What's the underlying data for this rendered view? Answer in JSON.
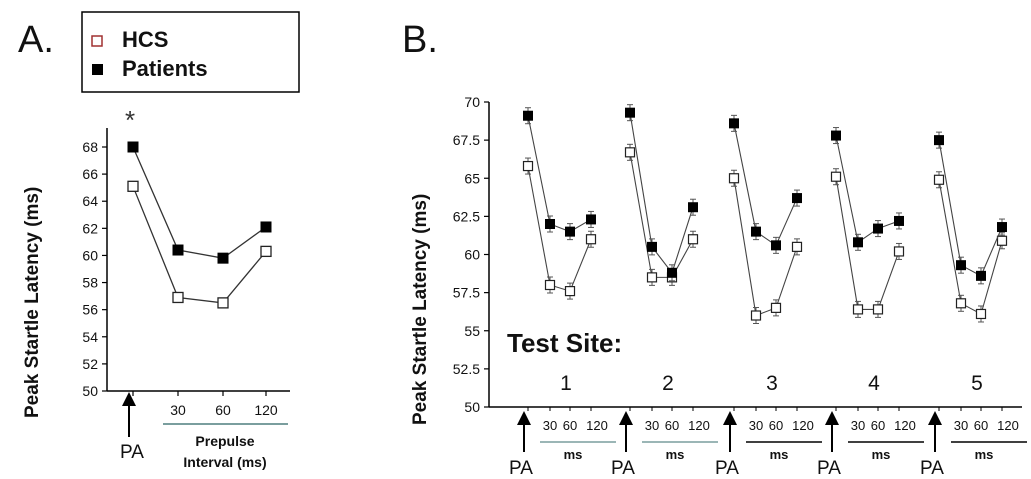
{
  "chart_data": [
    {
      "panel": "A.",
      "type": "line",
      "ylabel": "Peak Startle Latency (ms)",
      "ylim": [
        50,
        68
      ],
      "yticks": [
        "50",
        "52",
        "54",
        "56",
        "58",
        "60",
        "62",
        "64",
        "66",
        "68"
      ],
      "categories": [
        "PA",
        "30",
        "60",
        "120"
      ],
      "x_ticks": [
        "30",
        "60",
        "120"
      ],
      "xlabel": [
        "Prepulse",
        "Interval (ms)"
      ],
      "pa_label": "PA",
      "annotation": "*",
      "legend": [
        "HCS",
        "Patients"
      ],
      "series": [
        {
          "name": "HCS",
          "marker": "open-square",
          "values": [
            65.1,
            56.9,
            56.5,
            60.3
          ]
        },
        {
          "name": "Patients",
          "marker": "filled-square",
          "values": [
            68.0,
            60.4,
            59.8,
            62.1
          ]
        }
      ]
    },
    {
      "panel": "B.",
      "type": "line",
      "ylabel": "Peak Startle Latency (ms)",
      "ylim": [
        50,
        70
      ],
      "yticks": [
        "50",
        "52.5",
        "55",
        "57.5",
        "60",
        "62.5",
        "65",
        "67.5",
        "70"
      ],
      "categories": [
        "PA",
        "30",
        "60",
        "120"
      ],
      "x_ticks": [
        "30",
        "60",
        "120"
      ],
      "pa_label": "PA",
      "ms_label": "ms",
      "test_site_title": "Test Site:",
      "sites": [
        {
          "label": "1",
          "hcs": [
            65.8,
            58.0,
            57.6,
            61.0
          ],
          "patients": [
            69.1,
            62.0,
            61.5,
            62.3
          ]
        },
        {
          "label": "2",
          "hcs": [
            66.7,
            58.5,
            58.5,
            61.0
          ],
          "patients": [
            69.3,
            60.5,
            58.8,
            63.1
          ]
        },
        {
          "label": "3",
          "hcs": [
            65.0,
            56.0,
            56.5,
            60.5
          ],
          "patients": [
            68.6,
            61.5,
            60.6,
            63.7
          ]
        },
        {
          "label": "4",
          "hcs": [
            65.1,
            56.4,
            56.4,
            60.2
          ],
          "patients": [
            67.8,
            60.8,
            61.7,
            62.2
          ]
        },
        {
          "label": "5",
          "hcs": [
            64.9,
            56.8,
            56.1,
            60.9
          ],
          "patients": [
            67.5,
            59.3,
            58.6,
            61.8
          ]
        }
      ],
      "series": [
        {
          "name": "HCS",
          "marker": "open-square"
        },
        {
          "name": "Patients",
          "marker": "filled-square"
        }
      ]
    }
  ],
  "colors": {
    "hcs_stroke": "#222222",
    "patients_fill": "#000000",
    "axis": "#000000",
    "prepulse_underline": "#7a9e9e",
    "line_gray": "#555555"
  }
}
